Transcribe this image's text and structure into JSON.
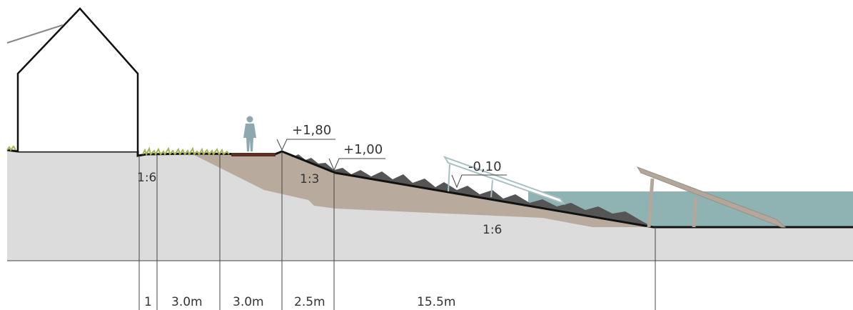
{
  "colors": {
    "ground": "#dcdcdd",
    "dike_core": "#b8ab9e",
    "water": "#8fb3b2",
    "armour_stone": "#555555",
    "grass": "#a7b35a",
    "outline": "#111111",
    "line": "#444444",
    "person": "#8fa7ae"
  },
  "levels": {
    "crest": "+1,80",
    "berm": "+1,00",
    "water": "-0,10"
  },
  "slopes": {
    "inner": "1:6",
    "outer_upper": "1:3",
    "outer_lower": "1:6"
  },
  "dimensions": [
    "1",
    "3.0m",
    "3.0m",
    "2.5m",
    "15.5m"
  ],
  "icons": {
    "house": "house-outline-icon",
    "person": "person-silhouette-icon",
    "solar_panel_1": "tilted-panel-outline-icon",
    "solar_panel_2": "tilted-panel-outline-icon",
    "jetty": "sloped-pier-icon"
  }
}
